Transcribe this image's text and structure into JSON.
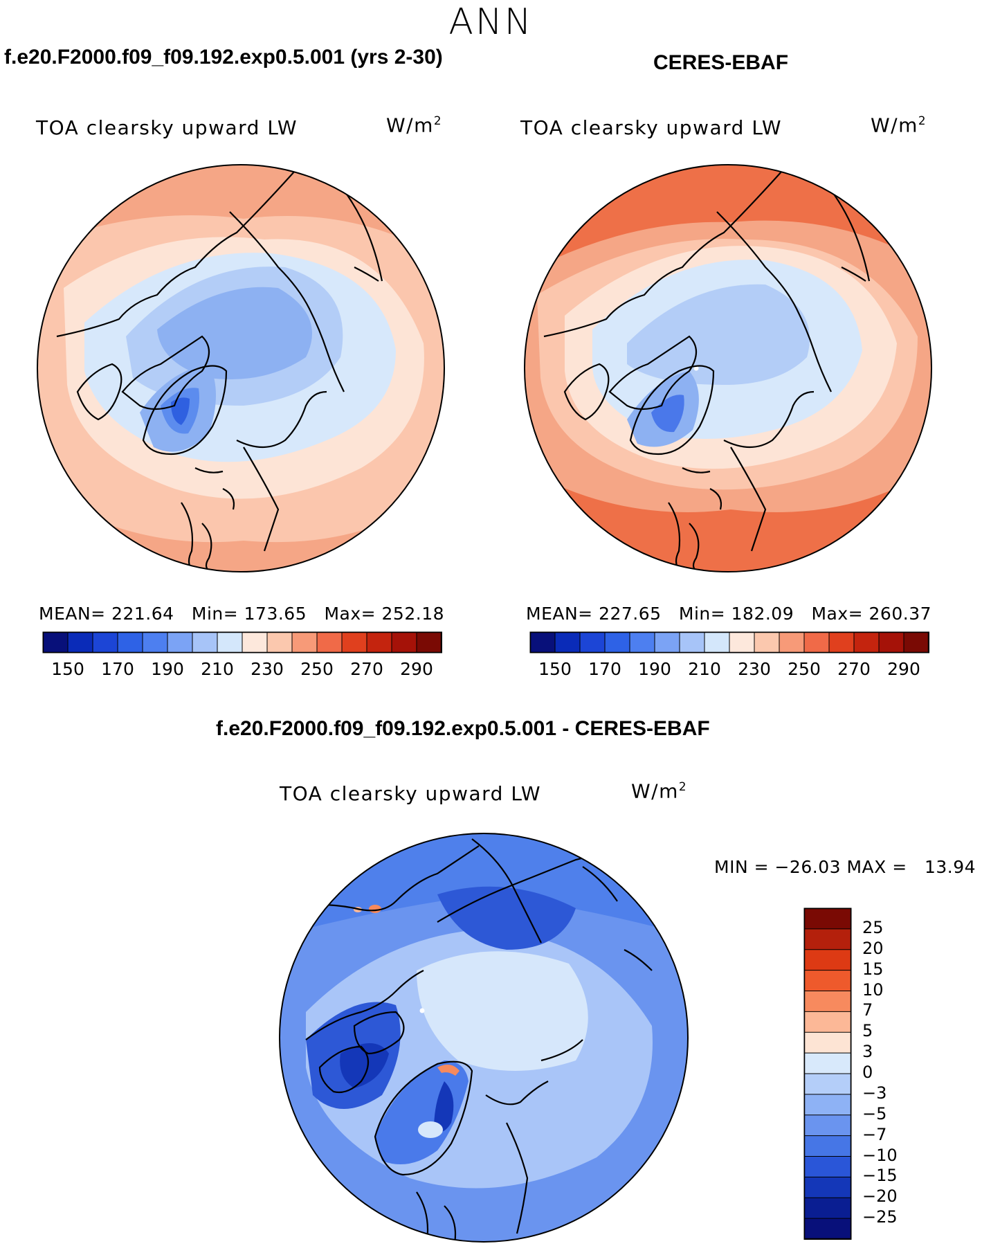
{
  "figure": {
    "season": "ANN"
  },
  "panels": [
    {
      "id": "model",
      "case_title": "f.e20.F2000.f09_f09.192.exp0.5.001 (yrs 2-30)",
      "field_label": "TOA clearsky upward LW",
      "units_base": "W/m",
      "units_exp": "2",
      "stats_text": "MEAN= 221.64   Min= 173.65   Max= 252.18",
      "mean": 221.64,
      "min": 173.65,
      "max": 252.18
    },
    {
      "id": "obs",
      "case_title": "CERES-EBAF",
      "field_label": "TOA clearsky upward LW",
      "units_base": "W/m",
      "units_exp": "2",
      "stats_text": "MEAN= 227.65   Min= 182.09   Max= 260.37",
      "mean": 227.65,
      "min": 182.09,
      "max": 260.37
    }
  ],
  "abs_colorbar": {
    "tick_labels": [
      "150",
      "170",
      "190",
      "210",
      "230",
      "250",
      "270",
      "290"
    ],
    "colors": [
      "#08107a",
      "#0a2bb8",
      "#1c45d6",
      "#2e62e6",
      "#4d7ff0",
      "#7ba3f5",
      "#a7c4f8",
      "#d4e7fb",
      "#fde8dc",
      "#fbc8ae",
      "#f79a78",
      "#f06a48",
      "#e0401e",
      "#c4240e",
      "#a51208",
      "#7a0a04"
    ]
  },
  "diff_panel": {
    "title": "f.e20.F2000.f09_f09.192.exp0.5.001 - CERES-EBAF",
    "field_label": "TOA clearsky upward LW",
    "units_base": "W/m",
    "units_exp": "2",
    "minmax_text": "MIN = −26.03 MAX =   13.94",
    "min": -26.03,
    "max": 13.94,
    "colorbar": {
      "tick_labels": [
        "25",
        "20",
        "15",
        "10",
        "7",
        "5",
        "3",
        "0",
        "−3",
        "−5",
        "−7",
        "−10",
        "−15",
        "−20",
        "−25"
      ],
      "colors": [
        "#7a0a04",
        "#b4200c",
        "#dd3a14",
        "#ee5a2c",
        "#f78a5e",
        "#fcb897",
        "#fde4d4",
        "#d8e9fb",
        "#b4cef9",
        "#8eb2f5",
        "#6a94ef",
        "#4676e6",
        "#2a56d8",
        "#1437b8",
        "#0a1e92",
        "#08107a"
      ]
    }
  },
  "map_colors": {
    "land_outline": "#000000",
    "model_zones": [
      "#f5a686",
      "#fbc6ad",
      "#fde4d6",
      "#d7e8fb",
      "#b3cdf7",
      "#8db1f2",
      "#5c8cee",
      "#2f60e0"
    ],
    "obs_zones": [
      "#ee7048",
      "#f5a686",
      "#fbc6ad",
      "#fde4d6",
      "#d7e8fb",
      "#b3cdf7",
      "#8db1f2",
      "#4a78ea"
    ],
    "diff_zones": [
      "#4f80eb",
      "#7ba3f5",
      "#a9c5f8",
      "#d6e7fb",
      "#4a7aea",
      "#2d58d6"
    ]
  }
}
